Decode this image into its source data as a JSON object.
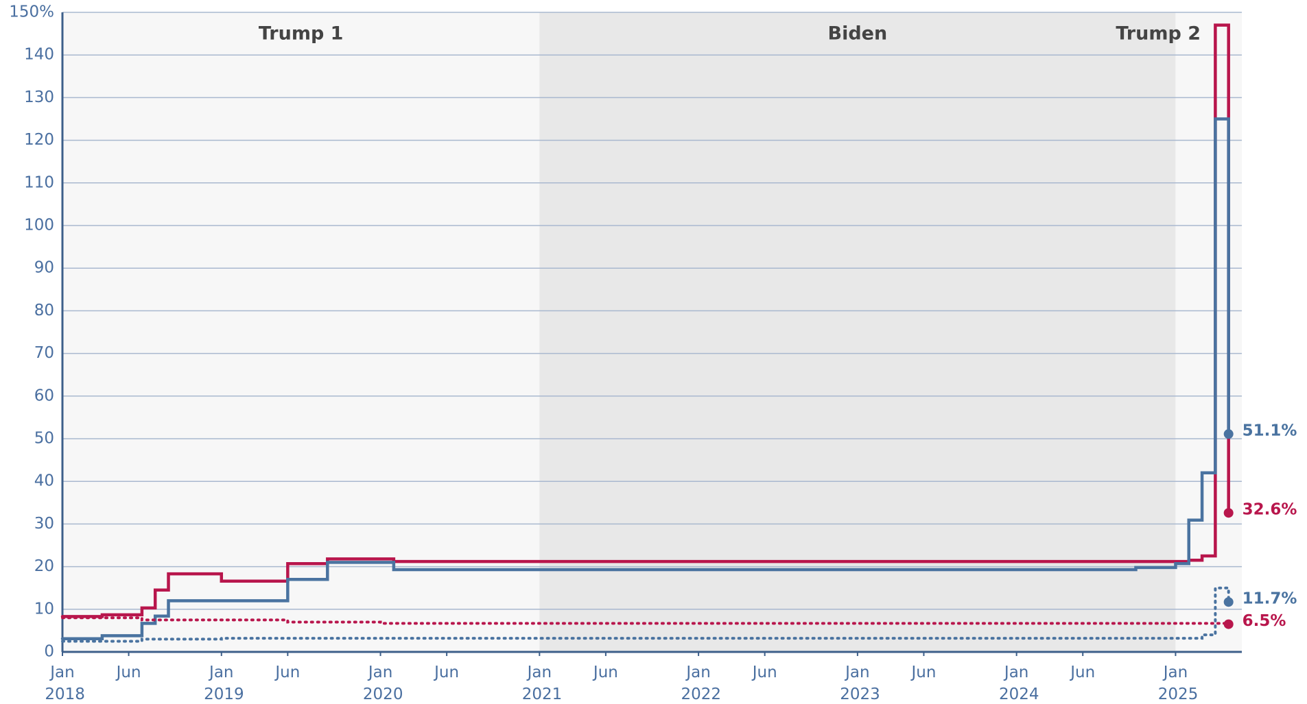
{
  "chart_data": {
    "type": "step",
    "periods": [
      {
        "label": "Trump 1",
        "start": "2018-01"
      },
      {
        "label": "Biden",
        "start": "2021-01"
      },
      {
        "label": "Trump 2",
        "start": "2025-01"
      }
    ],
    "series": [
      {
        "color": "#b8164c",
        "style": "solid",
        "x": [
          "2018-01",
          "2018-04",
          "2018-07",
          "2018-08",
          "2018-09",
          "2019-01",
          "2019-06",
          "2019-09",
          "2020-02",
          "2025-02",
          "2025-03",
          "2025-04",
          "2025-05"
        ],
        "values": [
          8.3,
          8.7,
          10.3,
          14.5,
          18.3,
          16.6,
          20.7,
          21.8,
          21.2,
          21.5,
          22.5,
          147,
          32.6
        ],
        "value_labels": [
          null,
          null,
          null,
          null,
          null,
          null,
          null,
          null,
          null,
          null,
          null,
          null,
          "32.6%"
        ]
      },
      {
        "color": "#4a73a0",
        "style": "solid",
        "x": [
          "2018-01",
          "2018-04",
          "2018-07",
          "2018-08",
          "2018-09",
          "2019-06",
          "2019-09",
          "2020-02",
          "2024-10",
          "2025-01",
          "2025-02",
          "2025-03",
          "2025-04",
          "2025-05"
        ],
        "values": [
          3.1,
          3.8,
          6.7,
          8.4,
          12.0,
          17.0,
          21.0,
          19.3,
          19.8,
          20.7,
          30.9,
          42.0,
          125,
          51.1
        ],
        "value_labels": [
          null,
          null,
          null,
          null,
          null,
          null,
          null,
          null,
          null,
          null,
          null,
          null,
          null,
          "51.1%"
        ]
      },
      {
        "color": "#4a73a0",
        "style": "dotted",
        "x": [
          "2018-01",
          "2018-07",
          "2019-01",
          "2025-03",
          "2025-04",
          "2025-05"
        ],
        "values": [
          2.5,
          3.0,
          3.2,
          4.0,
          15.0,
          11.7
        ],
        "value_labels": [
          null,
          null,
          null,
          null,
          null,
          "11.7%"
        ]
      },
      {
        "color": "#b8164c",
        "style": "dotted",
        "x": [
          "2018-01",
          "2018-07",
          "2019-06",
          "2020-01",
          "2025-05"
        ],
        "values": [
          8.0,
          7.5,
          7.0,
          6.7,
          6.5
        ],
        "value_labels": [
          null,
          null,
          null,
          null,
          "6.5%"
        ]
      }
    ],
    "xlim": [
      "2018-01",
      "2025-06"
    ],
    "xticks": [
      {
        "value": "2018-01",
        "label": "Jan 2018"
      },
      {
        "value": "2018-06",
        "label": "Jun"
      },
      {
        "value": "2019-01",
        "label": "Jan 2019"
      },
      {
        "value": "2019-06",
        "label": "Jun"
      },
      {
        "value": "2020-01",
        "label": "Jan 2020"
      },
      {
        "value": "2020-06",
        "label": "Jun"
      },
      {
        "value": "2021-01",
        "label": "Jan 2021"
      },
      {
        "value": "2021-06",
        "label": "Jun"
      },
      {
        "value": "2022-01",
        "label": "Jan 2022"
      },
      {
        "value": "2022-06",
        "label": "Jun"
      },
      {
        "value": "2023-01",
        "label": "Jan 2023"
      },
      {
        "value": "2023-06",
        "label": "Jun"
      },
      {
        "value": "2024-01",
        "label": "Jan 2024"
      },
      {
        "value": "2024-06",
        "label": "Jun"
      },
      {
        "value": "2025-01",
        "label": "Jan 2025"
      }
    ],
    "ylim": [
      0,
      150
    ],
    "yticks": [
      0,
      10,
      20,
      30,
      40,
      50,
      60,
      70,
      80,
      90,
      100,
      110,
      120,
      130,
      140,
      {
        "value": 150,
        "label": "150%"
      }
    ],
    "grid": true
  }
}
